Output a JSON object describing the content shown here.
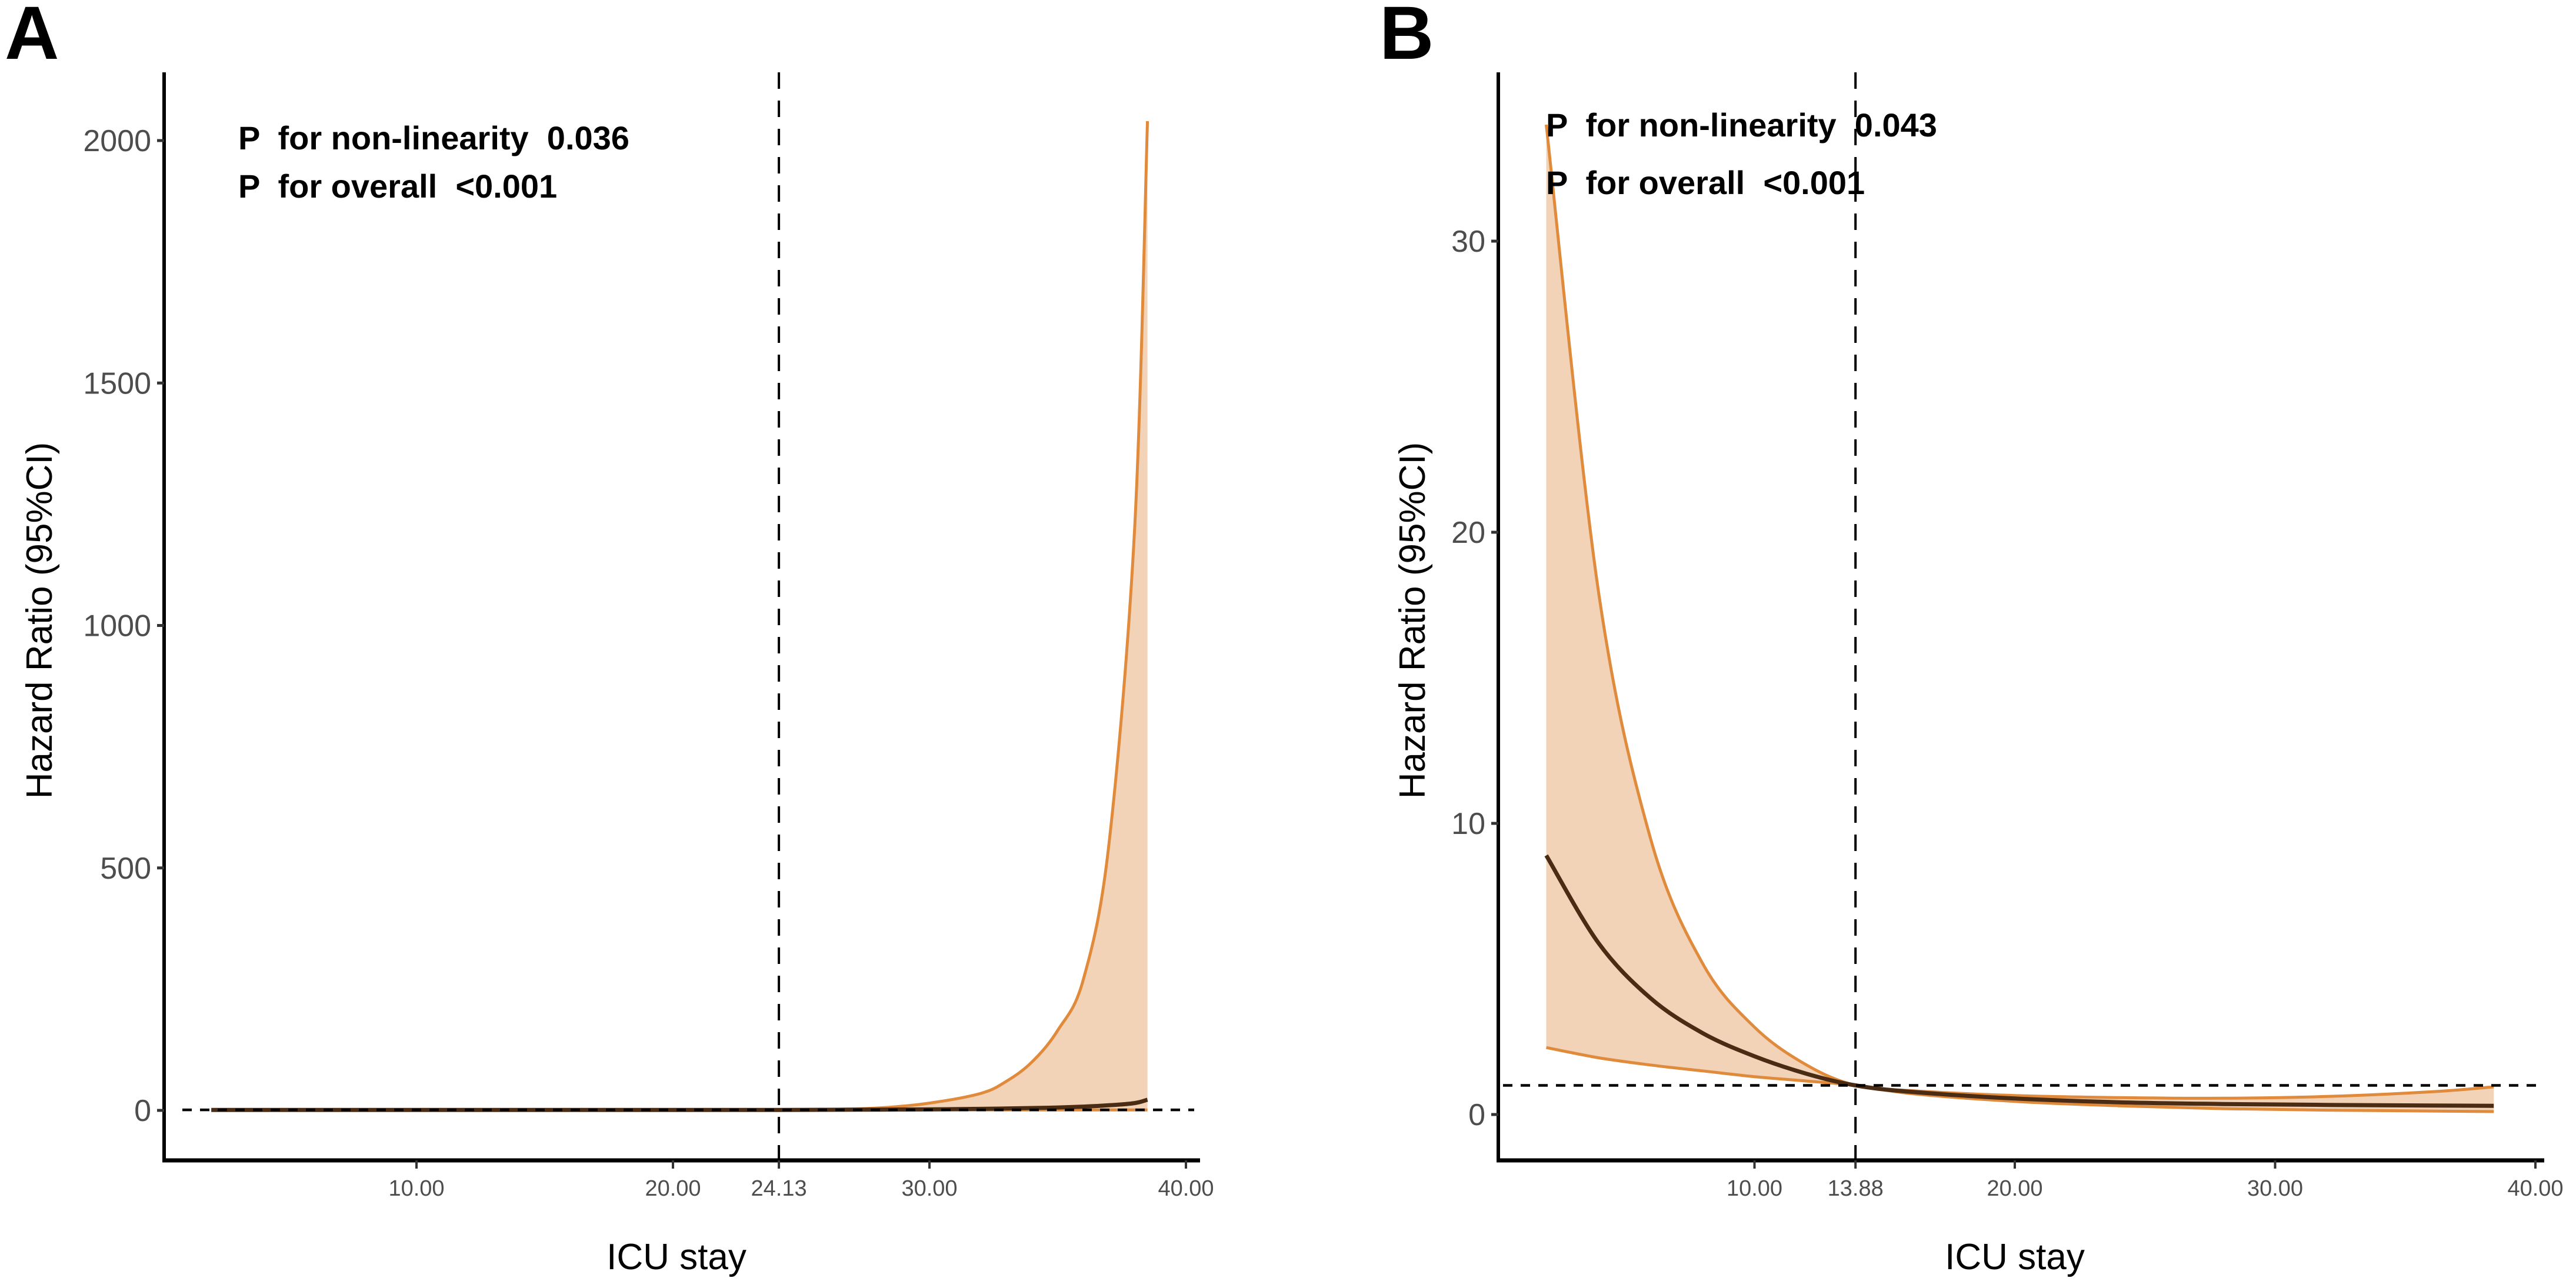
{
  "chart_data": [
    {
      "panel": "A",
      "type": "line",
      "title": "",
      "xlabel": "ICU stay",
      "ylabel": "Hazard Ratio (95%CI)",
      "xlim": [
        0,
        40.5
      ],
      "ylim": [
        -103,
        2140
      ],
      "xticks": [
        10,
        20,
        24.13,
        30,
        40
      ],
      "xtick_labels": [
        "10.00",
        "20.00",
        "24.13",
        "30.00",
        "40.00"
      ],
      "yticks": [
        0,
        500,
        1000,
        1500,
        2000
      ],
      "ytick_labels": [
        "0",
        "500",
        "1000",
        "1500",
        "2000"
      ],
      "reference_hline": 1,
      "reference_vline": 24.13,
      "annotations": [
        "P  for non-linearity  0.036",
        "P  for overall  <0.001"
      ],
      "grid": false,
      "x": [
        2,
        6,
        10,
        14,
        18,
        22,
        24.13,
        26,
        28,
        30,
        32,
        33,
        34,
        35,
        36,
        37,
        38,
        38.5
      ],
      "series": [
        {
          "name": "HR",
          "values": [
            1.0,
            1.0,
            1.0,
            1.0,
            1.0,
            1.0,
            1.0,
            1.2,
            1.6,
            2.2,
            3.2,
            3.9,
            4.8,
            6.0,
            7.8,
            10.5,
            15,
            22
          ]
        },
        {
          "name": "Lower 95% CI",
          "values": [
            0.9,
            0.95,
            0.97,
            0.98,
            0.99,
            1.0,
            1.0,
            0.9,
            0.9,
            0.95,
            1.0,
            1.0,
            1.0,
            1.0,
            1.0,
            1.0,
            1.0,
            1.0
          ]
        },
        {
          "name": "Upper 95% CI",
          "values": [
            1.1,
            1.05,
            1.03,
            1.02,
            1.01,
            1.0,
            1.0,
            2,
            5,
            15,
            35,
            60,
            100,
            165,
            270,
            550,
            1200,
            2040
          ]
        }
      ]
    },
    {
      "panel": "B",
      "type": "line",
      "title": "",
      "xlabel": "ICU stay",
      "ylabel": "Hazard Ratio (95%CI)",
      "xlim": [
        0,
        40.5
      ],
      "ylim": [
        -1.6,
        35.8
      ],
      "xticks": [
        10,
        13.88,
        20,
        30,
        40
      ],
      "xtick_labels": [
        "10.00",
        "13.88",
        "20.00",
        "30.00",
        "40.00"
      ],
      "yticks": [
        0,
        10,
        20,
        30
      ],
      "ytick_labels": [
        "0",
        "10",
        "20",
        "30"
      ],
      "reference_hline": 1,
      "reference_vline": 13.88,
      "annotations": [
        "P  for non-linearity  0.043",
        "P  for overall  <0.001"
      ],
      "grid": false,
      "x": [
        2,
        4,
        6,
        8,
        10,
        12,
        13.88,
        16,
        20,
        24,
        28,
        32,
        36,
        38.4
      ],
      "series": [
        {
          "name": "HR",
          "values": [
            8.9,
            5.9,
            4.0,
            2.8,
            2.0,
            1.4,
            1.0,
            0.78,
            0.55,
            0.42,
            0.36,
            0.33,
            0.31,
            0.3
          ]
        },
        {
          "name": "Lower 95% CI",
          "values": [
            2.3,
            1.95,
            1.7,
            1.5,
            1.3,
            1.15,
            1.0,
            0.72,
            0.45,
            0.3,
            0.2,
            0.15,
            0.12,
            0.1
          ]
        },
        {
          "name": "Upper 95% CI",
          "values": [
            34,
            18,
            9.5,
            5.2,
            3.0,
            1.7,
            1.0,
            0.82,
            0.65,
            0.58,
            0.56,
            0.62,
            0.78,
            0.95
          ]
        }
      ]
    }
  ],
  "panels": [
    {
      "letter": "A",
      "annot_nonlinear": "P  for non-linearity  0.036",
      "annot_overall": "P  for overall  <0.001",
      "xlabel": "ICU stay",
      "ylabel": "Hazard Ratio (95%CI)"
    },
    {
      "letter": "B",
      "annot_nonlinear": "P  for non-linearity  0.043",
      "annot_overall": "P  for overall  <0.001",
      "xlabel": "ICU stay",
      "ylabel": "Hazard Ratio (95%CI)"
    }
  ],
  "colors": {
    "ci_fill": "#f2d3b7",
    "ci_line": "#e08a3c",
    "hr_line": "#4a2c14",
    "axis": "#000000",
    "tick_label": "#4d4d4d"
  }
}
